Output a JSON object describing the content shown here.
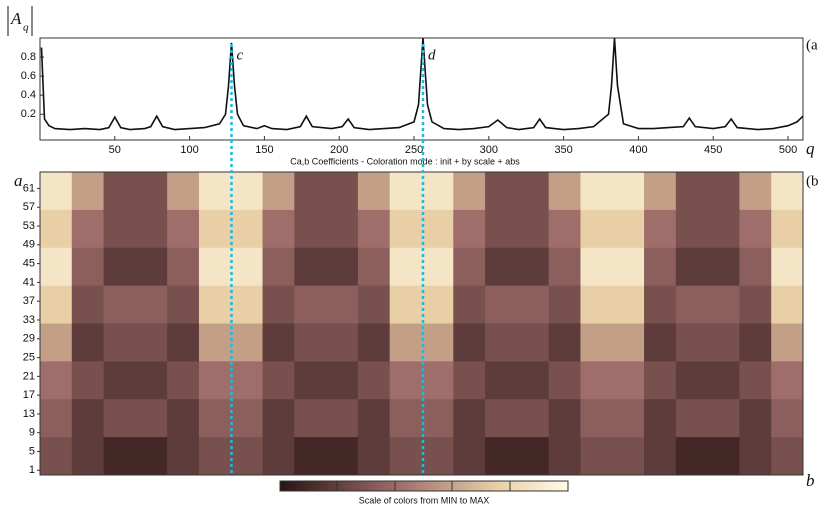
{
  "chart_data": [
    {
      "type": "line",
      "ylabel": "A",
      "ylabel_sub": "q",
      "xlabel": "q",
      "panel": "(a",
      "xlim": [
        0,
        510
      ],
      "ylim": [
        -0.07,
        1
      ],
      "xticks": [
        50,
        100,
        150,
        200,
        250,
        300,
        350,
        400,
        450,
        500
      ],
      "yticks": [
        0.2,
        0.4,
        0.6,
        0.8
      ],
      "color": "#111111",
      "x": [
        1,
        3,
        6,
        10,
        20,
        30,
        40,
        46,
        50,
        54,
        60,
        70,
        74,
        78,
        82,
        90,
        100,
        110,
        120,
        124,
        126,
        128,
        130,
        132,
        136,
        145,
        150,
        155,
        165,
        174,
        178,
        182,
        195,
        202,
        206,
        210,
        220,
        230,
        240,
        250,
        253,
        256,
        259,
        262,
        270,
        280,
        290,
        300,
        306,
        312,
        320,
        330,
        334,
        338,
        350,
        360,
        370,
        380,
        382,
        384,
        386,
        390,
        400,
        410,
        420,
        430,
        434,
        438,
        450,
        458,
        462,
        466,
        480,
        490,
        500,
        506,
        510
      ],
      "values": [
        0.9,
        0.15,
        0.08,
        0.05,
        0.04,
        0.05,
        0.04,
        0.06,
        0.17,
        0.06,
        0.04,
        0.05,
        0.07,
        0.18,
        0.07,
        0.04,
        0.05,
        0.06,
        0.1,
        0.2,
        0.5,
        0.95,
        0.5,
        0.2,
        0.08,
        0.05,
        0.08,
        0.05,
        0.04,
        0.07,
        0.18,
        0.07,
        0.05,
        0.07,
        0.15,
        0.06,
        0.04,
        0.05,
        0.06,
        0.12,
        0.3,
        1.0,
        0.3,
        0.12,
        0.05,
        0.04,
        0.05,
        0.07,
        0.14,
        0.06,
        0.04,
        0.06,
        0.15,
        0.06,
        0.04,
        0.05,
        0.07,
        0.2,
        0.5,
        1.0,
        0.5,
        0.1,
        0.05,
        0.05,
        0.06,
        0.07,
        0.16,
        0.07,
        0.05,
        0.07,
        0.15,
        0.06,
        0.04,
        0.05,
        0.08,
        0.12,
        0.18
      ],
      "markers": [
        {
          "label": "c",
          "x": 128,
          "color": "#29b6d8"
        },
        {
          "label": "d",
          "x": 256,
          "color": "#29b6d8"
        }
      ]
    },
    {
      "type": "heatmap",
      "title": "Ca,b Coefficients  - Coloration mode : init + by scale + abs",
      "ylabel": "a",
      "xlabel": "b",
      "panel": "(b",
      "xlim": [
        1,
        512
      ],
      "ylim": [
        0,
        64.5
      ],
      "yticks": [
        1,
        5,
        9,
        13,
        17,
        21,
        25,
        29,
        33,
        37,
        41,
        45,
        49,
        53,
        57,
        61
      ],
      "colorbar_label": "Scale of colors from MIN to MAX",
      "z": [
        [
          8,
          6,
          3,
          3,
          6,
          8,
          8,
          6,
          3,
          3,
          6,
          8,
          8,
          6,
          3,
          3,
          6,
          8,
          8,
          6,
          3,
          3,
          6,
          8
        ],
        [
          7,
          5,
          3,
          3,
          5,
          7,
          7,
          5,
          3,
          3,
          5,
          7,
          7,
          5,
          3,
          3,
          5,
          7,
          7,
          5,
          3,
          3,
          5,
          7
        ],
        [
          8,
          4,
          2,
          2,
          4,
          8,
          8,
          4,
          2,
          2,
          4,
          8,
          8,
          4,
          2,
          2,
          4,
          8,
          8,
          4,
          2,
          2,
          4,
          8
        ],
        [
          7,
          3,
          4,
          4,
          3,
          7,
          7,
          3,
          4,
          4,
          3,
          7,
          7,
          3,
          4,
          4,
          3,
          7,
          7,
          3,
          4,
          4,
          3,
          7
        ],
        [
          6,
          2,
          3,
          3,
          2,
          6,
          6,
          2,
          3,
          3,
          2,
          6,
          6,
          2,
          3,
          3,
          2,
          6,
          6,
          2,
          3,
          3,
          2,
          6
        ],
        [
          5,
          3,
          2,
          2,
          3,
          5,
          5,
          3,
          2,
          2,
          3,
          5,
          5,
          3,
          2,
          2,
          3,
          5,
          5,
          3,
          2,
          2,
          3,
          5
        ],
        [
          4,
          2,
          3,
          3,
          2,
          4,
          4,
          2,
          3,
          3,
          2,
          4,
          4,
          2,
          3,
          3,
          2,
          4,
          4,
          2,
          3,
          3,
          2,
          4
        ],
        [
          3,
          2,
          1,
          1,
          2,
          3,
          3,
          2,
          1,
          1,
          2,
          3,
          3,
          2,
          1,
          1,
          2,
          3,
          3,
          2,
          1,
          1,
          2,
          3
        ]
      ]
    }
  ]
}
